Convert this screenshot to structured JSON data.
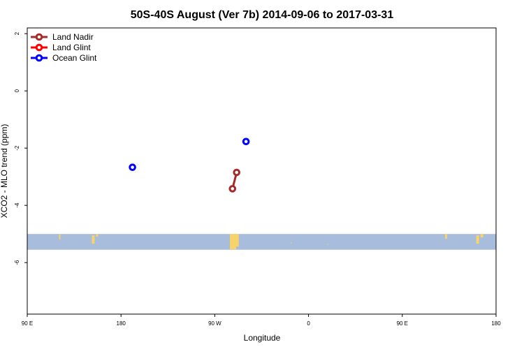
{
  "chart_data": {
    "type": "scatter",
    "title": "50S-40S August (Ver 7b)   2014-09-06 to 2017-03-31",
    "xlabel": "Longitude",
    "ylabel": "XCO2 - MLO trend (ppm)",
    "x_ticks": [
      {
        "value": 90,
        "label": "90 E"
      },
      {
        "value": 180,
        "label": "180"
      },
      {
        "value": 270,
        "label": "90 W"
      },
      {
        "value": 360,
        "label": "0"
      },
      {
        "value": 450,
        "label": "90 E"
      },
      {
        "value": 540,
        "label": "180"
      }
    ],
    "y_ticks": [
      {
        "value": 2,
        "label": "2"
      },
      {
        "value": 0,
        "label": "0"
      },
      {
        "value": -2,
        "label": "-2"
      },
      {
        "value": -4,
        "label": "-4"
      },
      {
        "value": -6,
        "label": "-6"
      }
    ],
    "xlim": [
      90,
      540
    ],
    "ylim": [
      -7.8,
      2.2
    ],
    "legend_position": "top-left",
    "series": [
      {
        "name": "Land Nadir",
        "color": "#a52a2a",
        "connected": true,
        "points": [
          {
            "x": 287,
            "y": -3.42
          },
          {
            "x": 291,
            "y": -2.85
          }
        ]
      },
      {
        "name": "Land Glint",
        "color": "#ff0000",
        "connected": true,
        "points": []
      },
      {
        "name": "Ocean Glint",
        "color": "#0000ff",
        "connected": false,
        "points": [
          {
            "x": 191,
            "y": -2.67
          },
          {
            "x": 300,
            "y": -1.77
          }
        ]
      }
    ],
    "background_map": {
      "description_band": "latitude band 50S-40S",
      "ocean_color": "#a8bcdc",
      "land_color": "#f7d36a",
      "y_range": [
        -5.55,
        -5.0
      ]
    }
  }
}
